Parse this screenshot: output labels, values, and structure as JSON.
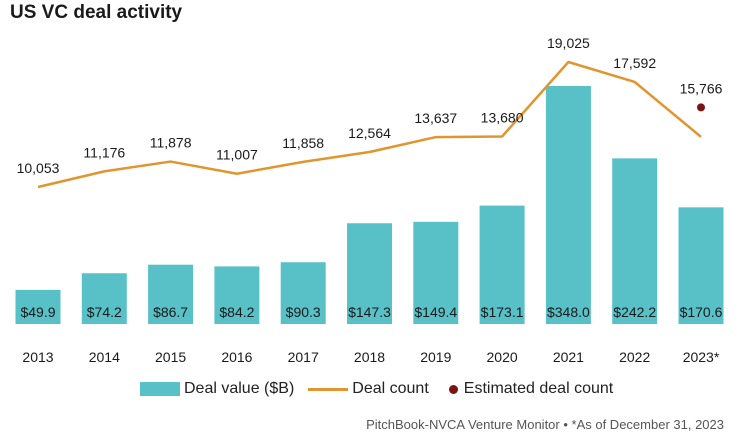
{
  "title": "US VC deal activity",
  "source": "PitchBook-NVCA Venture Monitor  •  *As of December 31, 2023",
  "colors": {
    "bar": "#58c1c8",
    "line": "#e0952f",
    "dot": "#7a1414"
  },
  "chart_data": {
    "type": "bar",
    "categories": [
      "2013",
      "2014",
      "2015",
      "2016",
      "2017",
      "2018",
      "2019",
      "2020",
      "2021",
      "2022",
      "2023*"
    ],
    "series": [
      {
        "name": "Deal value ($B)",
        "type": "bar",
        "values": [
          49.9,
          74.2,
          86.7,
          84.2,
          90.3,
          147.3,
          149.4,
          173.1,
          348.0,
          242.2,
          170.6
        ],
        "labels": [
          "$49.9",
          "$74.2",
          "$86.7",
          "$84.2",
          "$90.3",
          "$147.3",
          "$149.4",
          "$173.1",
          "$348.0",
          "$242.2",
          "$170.6"
        ]
      },
      {
        "name": "Deal count",
        "type": "line",
        "values": [
          10053,
          11176,
          11878,
          11007,
          11858,
          12564,
          13637,
          13680,
          19025,
          17592,
          13650
        ],
        "labels": [
          "10,053",
          "11,176",
          "11,878",
          "11,007",
          "11,858",
          "12,564",
          "13,637",
          "13,680",
          "19,025",
          "17,592",
          ""
        ]
      },
      {
        "name": "Estimated deal count",
        "type": "scatter",
        "values": [
          null,
          null,
          null,
          null,
          null,
          null,
          null,
          null,
          null,
          null,
          15766
        ],
        "labels": [
          "",
          "",
          "",
          "",
          "",
          "",
          "",
          "",
          "",
          "",
          "15,766"
        ]
      }
    ],
    "legend": [
      "Deal value ($B)",
      "Deal count",
      "Estimated deal count"
    ],
    "legend_position": "bottom",
    "grid": false
  }
}
